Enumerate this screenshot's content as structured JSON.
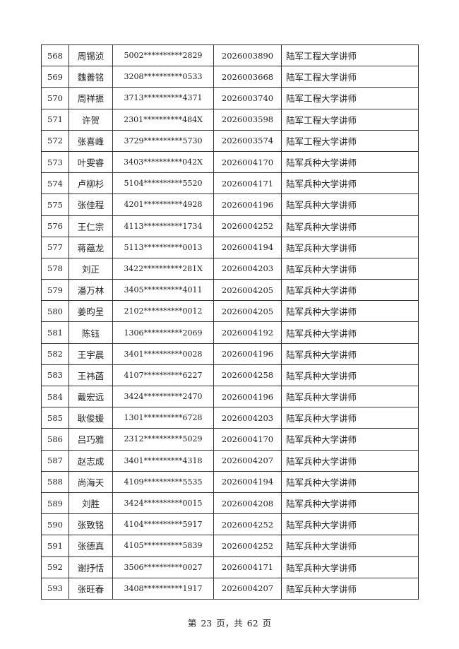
{
  "table": {
    "rows": [
      [
        "568",
        "周锡浈",
        "5002**********2829",
        "2026003890",
        "陆军工程大学讲师"
      ],
      [
        "569",
        "魏善铭",
        "3208**********0533",
        "2026003668",
        "陆军工程大学讲师"
      ],
      [
        "570",
        "周祥振",
        "3713**********4371",
        "2026003740",
        "陆军工程大学讲师"
      ],
      [
        "571",
        "许贺",
        "2301**********484X",
        "2026003598",
        "陆军工程大学讲师"
      ],
      [
        "572",
        "张喜峰",
        "3729**********5730",
        "2026003574",
        "陆军工程大学讲师"
      ],
      [
        "573",
        "叶雯睿",
        "3403**********042X",
        "2026004170",
        "陆军兵种大学讲师"
      ],
      [
        "574",
        "卢柳杉",
        "5104**********5520",
        "2026004171",
        "陆军兵种大学讲师"
      ],
      [
        "575",
        "张佳程",
        "4201**********4928",
        "2026004196",
        "陆军兵种大学讲师"
      ],
      [
        "576",
        "王仁宗",
        "4113**********1734",
        "2026004252",
        "陆军兵种大学讲师"
      ],
      [
        "577",
        "蒋蕴龙",
        "5113**********0013",
        "2026004194",
        "陆军兵种大学讲师"
      ],
      [
        "578",
        "刘正",
        "3422**********281X",
        "2026004203",
        "陆军兵种大学讲师"
      ],
      [
        "579",
        "潘万林",
        "3405**********4011",
        "2026004205",
        "陆军兵种大学讲师"
      ],
      [
        "580",
        "姜昀呈",
        "2102**********0012",
        "2026004205",
        "陆军兵种大学讲师"
      ],
      [
        "581",
        "陈钰",
        "1306**********2069",
        "2026004192",
        "陆军兵种大学讲师"
      ],
      [
        "582",
        "王宇晨",
        "3401**********0028",
        "2026004196",
        "陆军兵种大学讲师"
      ],
      [
        "583",
        "王祎菡",
        "4107**********6227",
        "2026004258",
        "陆军兵种大学讲师"
      ],
      [
        "584",
        "戴宏远",
        "3424**********2470",
        "2026004196",
        "陆军兵种大学讲师"
      ],
      [
        "585",
        "耿俊媛",
        "1301**********6728",
        "2026004203",
        "陆军兵种大学讲师"
      ],
      [
        "586",
        "吕巧雅",
        "2312**********5029",
        "2026004170",
        "陆军兵种大学讲师"
      ],
      [
        "587",
        "赵志成",
        "3401**********4318",
        "2026004207",
        "陆军兵种大学讲师"
      ],
      [
        "588",
        "尚海天",
        "4109**********5535",
        "2026004194",
        "陆军兵种大学讲师"
      ],
      [
        "589",
        "刘胜",
        "3424**********0015",
        "2026004208",
        "陆军兵种大学讲师"
      ],
      [
        "590",
        "张致铭",
        "4104**********5917",
        "2026004252",
        "陆军兵种大学讲师"
      ],
      [
        "591",
        "张德真",
        "4105**********5839",
        "2026004252",
        "陆军兵种大学讲师"
      ],
      [
        "592",
        "谢抒恬",
        "3506**********0027",
        "2026004171",
        "陆军兵种大学讲师"
      ],
      [
        "593",
        "张旺春",
        "3408**********1917",
        "2026004207",
        "陆军兵种大学讲师"
      ]
    ]
  },
  "footer": {
    "prefix": "第",
    "page": "23",
    "mid": "页，共",
    "total": "62",
    "suffix": "页"
  }
}
